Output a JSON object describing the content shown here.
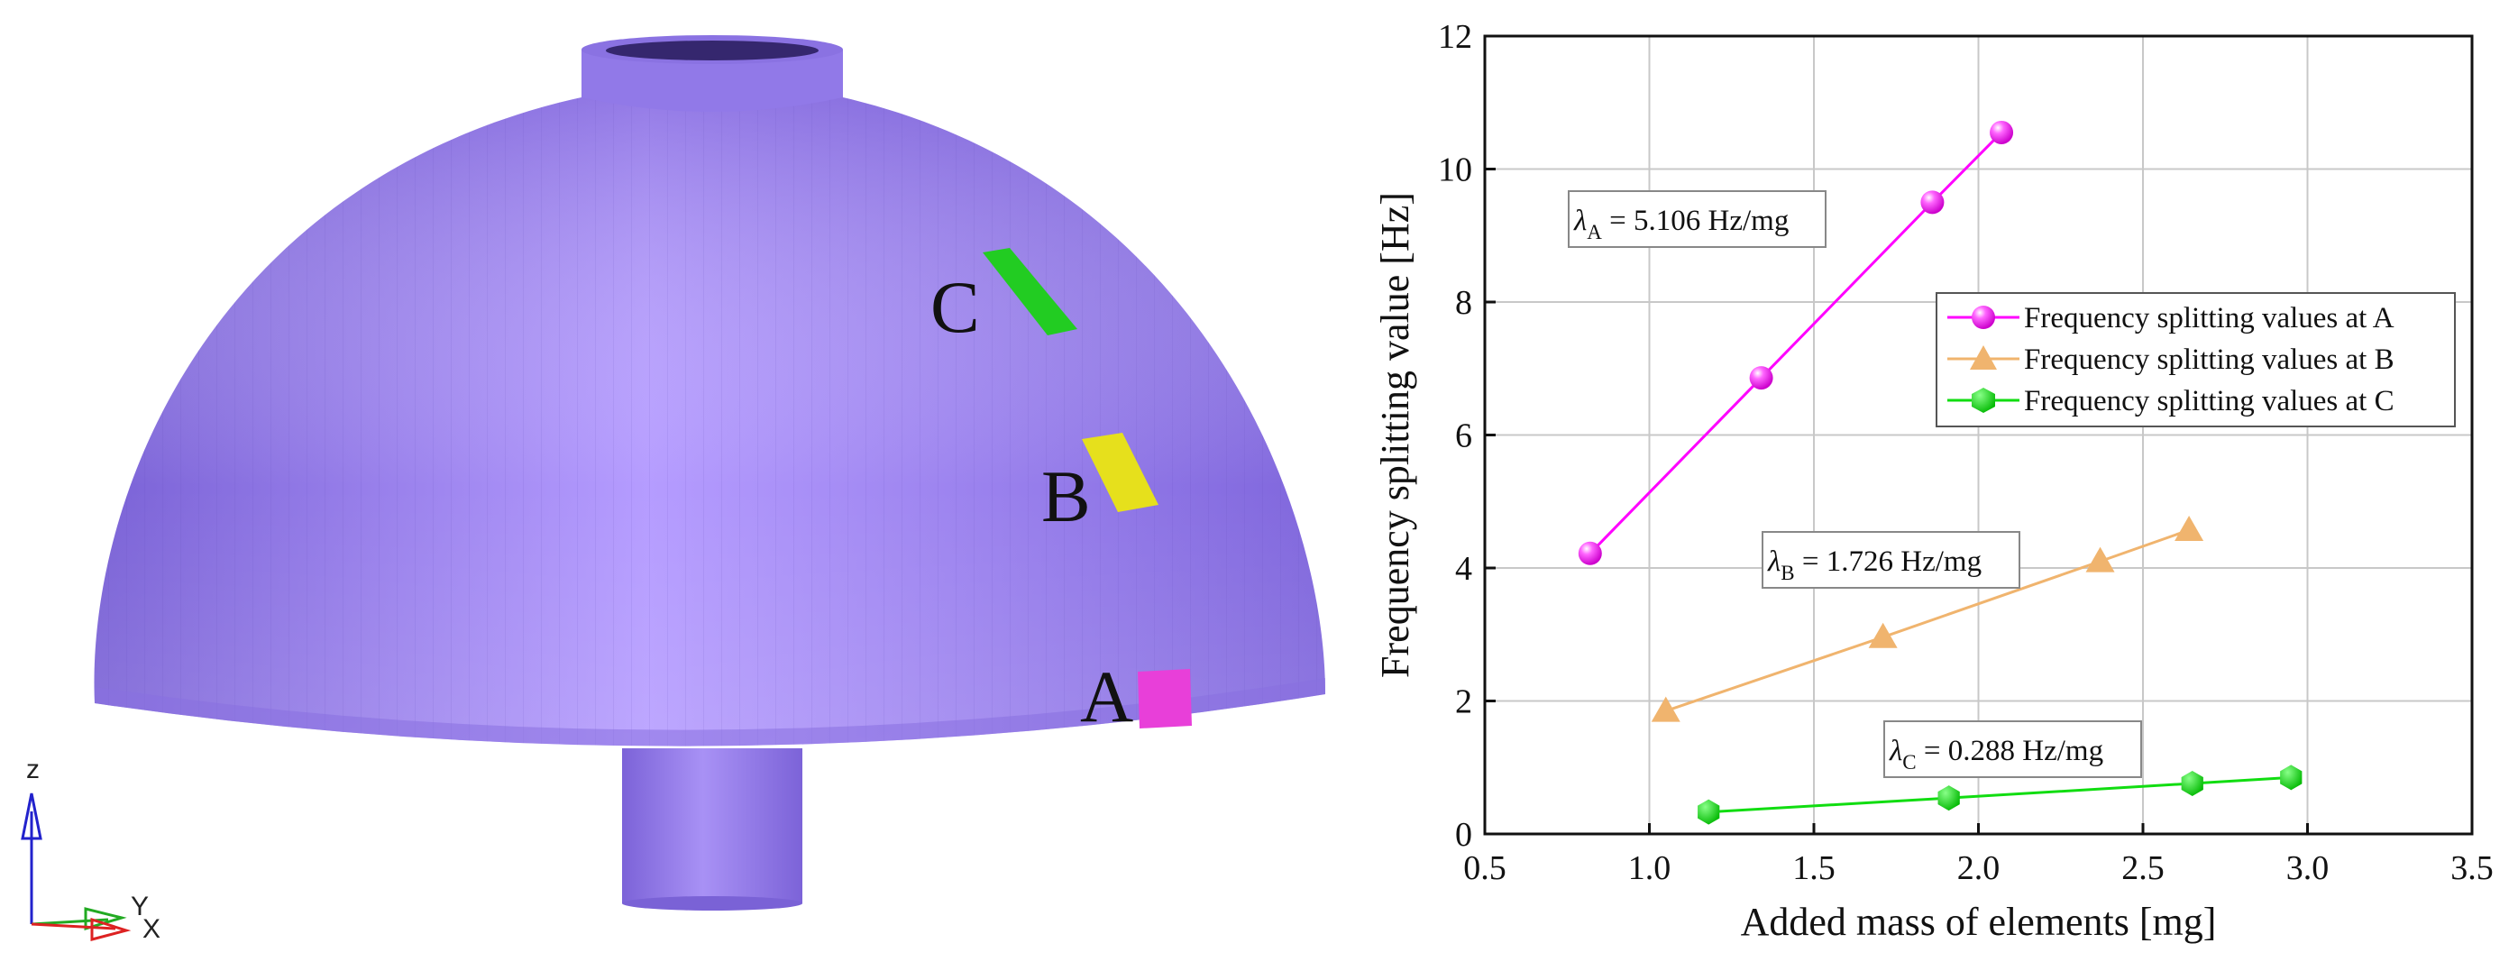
{
  "model": {
    "point_labels": [
      "A",
      "B",
      "C"
    ],
    "triad": {
      "z": "z",
      "y": "Y",
      "x": "X"
    },
    "colors": {
      "body": "#9f86f2",
      "A": "#e83fd9",
      "B": "#e6e01c",
      "C": "#22cc22"
    }
  },
  "chart_data": {
    "type": "line",
    "xlabel": "Added mass of elements [mg]",
    "ylabel": "Frequency splitting value [Hz]",
    "xlim": [
      0.5,
      3.5
    ],
    "ylim": [
      0,
      12
    ],
    "xticks": [
      "0.5",
      "1.0",
      "1.5",
      "2.0",
      "2.5",
      "3.0",
      "3.5"
    ],
    "yticks": [
      "0",
      "2",
      "4",
      "6",
      "8",
      "10",
      "12"
    ],
    "grid": true,
    "legend_position": "top-right",
    "series": [
      {
        "name": "Frequency splitting values at A",
        "marker": "sphere",
        "color": "#ff00ff",
        "x": [
          0.82,
          1.34,
          1.86,
          2.07
        ],
        "y": [
          4.22,
          6.86,
          9.5,
          10.55
        ]
      },
      {
        "name": "Frequency splitting values at B",
        "marker": "triangle",
        "color": "#f0b46e",
        "x": [
          1.05,
          1.71,
          2.37,
          2.64
        ],
        "y": [
          1.85,
          2.96,
          4.1,
          4.57
        ]
      },
      {
        "name": "Frequency splitting values at C",
        "marker": "hexagon",
        "color": "#11dd11",
        "x": [
          1.18,
          1.91,
          2.65,
          2.95
        ],
        "y": [
          0.33,
          0.54,
          0.76,
          0.85
        ]
      }
    ],
    "annotations": [
      {
        "symbol": "λ",
        "sub": "A",
        "text": " = 5.106 Hz/mg"
      },
      {
        "symbol": "λ",
        "sub": "B",
        "text": " = 1.726 Hz/mg"
      },
      {
        "symbol": "λ",
        "sub": "C",
        "text": " = 0.288 Hz/mg"
      }
    ]
  }
}
